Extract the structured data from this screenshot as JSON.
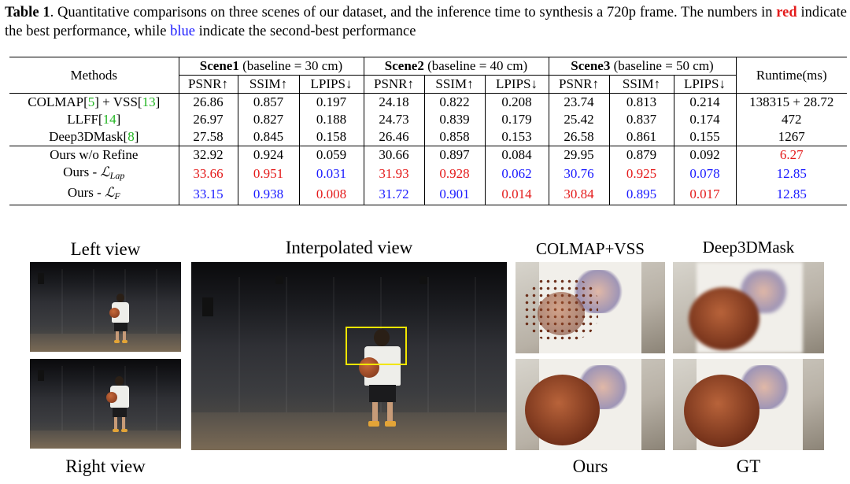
{
  "caption": {
    "label": "Table 1",
    "text_1": ". Quantitative comparisons on three scenes of our dataset, and the inference time to synthesis a 720p frame. The numbers in ",
    "red_word": "red",
    "text_2": " indicate the best performance, while ",
    "blue_word": "blue",
    "text_3": " indicate the second-best performance"
  },
  "table": {
    "methods_header": "Methods",
    "runtime_header": "Runtime(ms)",
    "scenes": [
      {
        "name": "Scene1",
        "baseline": " (baseline = 30 cm)"
      },
      {
        "name": "Scene2",
        "baseline": " (baseline = 40 cm)"
      },
      {
        "name": "Scene3",
        "baseline": " (baseline = 50 cm)"
      }
    ],
    "metrics": [
      "PSNR↑",
      "SSIM↑",
      "LPIPS↓"
    ],
    "rows": [
      {
        "method_a": "COLMAP[",
        "ref_a": "5",
        "method_b": "] + VSS[",
        "ref_b": "13",
        "method_c": "]",
        "values": [
          "26.86",
          "0.857",
          "0.197",
          "24.18",
          "0.822",
          "0.208",
          "23.74",
          "0.813",
          "0.214"
        ],
        "runtime": "138315 + 28.72"
      },
      {
        "method_a": "LLFF[",
        "ref_a": "14",
        "method_b": "]",
        "values": [
          "26.97",
          "0.827",
          "0.188",
          "24.73",
          "0.839",
          "0.179",
          "25.42",
          "0.837",
          "0.174"
        ],
        "runtime": "472"
      },
      {
        "method_a": "Deep3DMask[",
        "ref_a": "8",
        "method_b": "]",
        "values": [
          "27.58",
          "0.845",
          "0.158",
          "26.46",
          "0.858",
          "0.153",
          "26.58",
          "0.861",
          "0.155"
        ],
        "runtime": "1267"
      },
      {
        "method_a": "Ours w/o Refine",
        "values": [
          "32.92",
          "0.924",
          "0.059",
          "30.66",
          "0.897",
          "0.084",
          "29.95",
          "0.879",
          "0.092"
        ],
        "runtime": "6.27"
      },
      {
        "method_a": "Ours - ",
        "symbol": "ℒ",
        "subscript": "Lap",
        "values": [
          "33.66",
          "0.951",
          "0.031",
          "31.93",
          "0.928",
          "0.062",
          "30.76",
          "0.925",
          "0.078"
        ],
        "runtime": "12.85"
      },
      {
        "method_a": "Ours - ",
        "symbol": "ℒ",
        "subscript": "F",
        "values": [
          "33.15",
          "0.938",
          "0.008",
          "31.72",
          "0.901",
          "0.014",
          "30.84",
          "0.895",
          "0.017"
        ],
        "runtime": "12.85"
      }
    ],
    "highlight_colors": {
      "best": "#e41a1a",
      "second": "#1a1aff",
      "reference": "#21b521"
    }
  },
  "figure": {
    "left_view": "Left view",
    "right_view": "Right view",
    "interpolated_view": "Interpolated view",
    "colmap_vss": "COLMAP+VSS",
    "deep3dmask": "Deep3DMask",
    "ours": "Ours",
    "gt": "GT",
    "bbox_color": "#f2e600"
  }
}
